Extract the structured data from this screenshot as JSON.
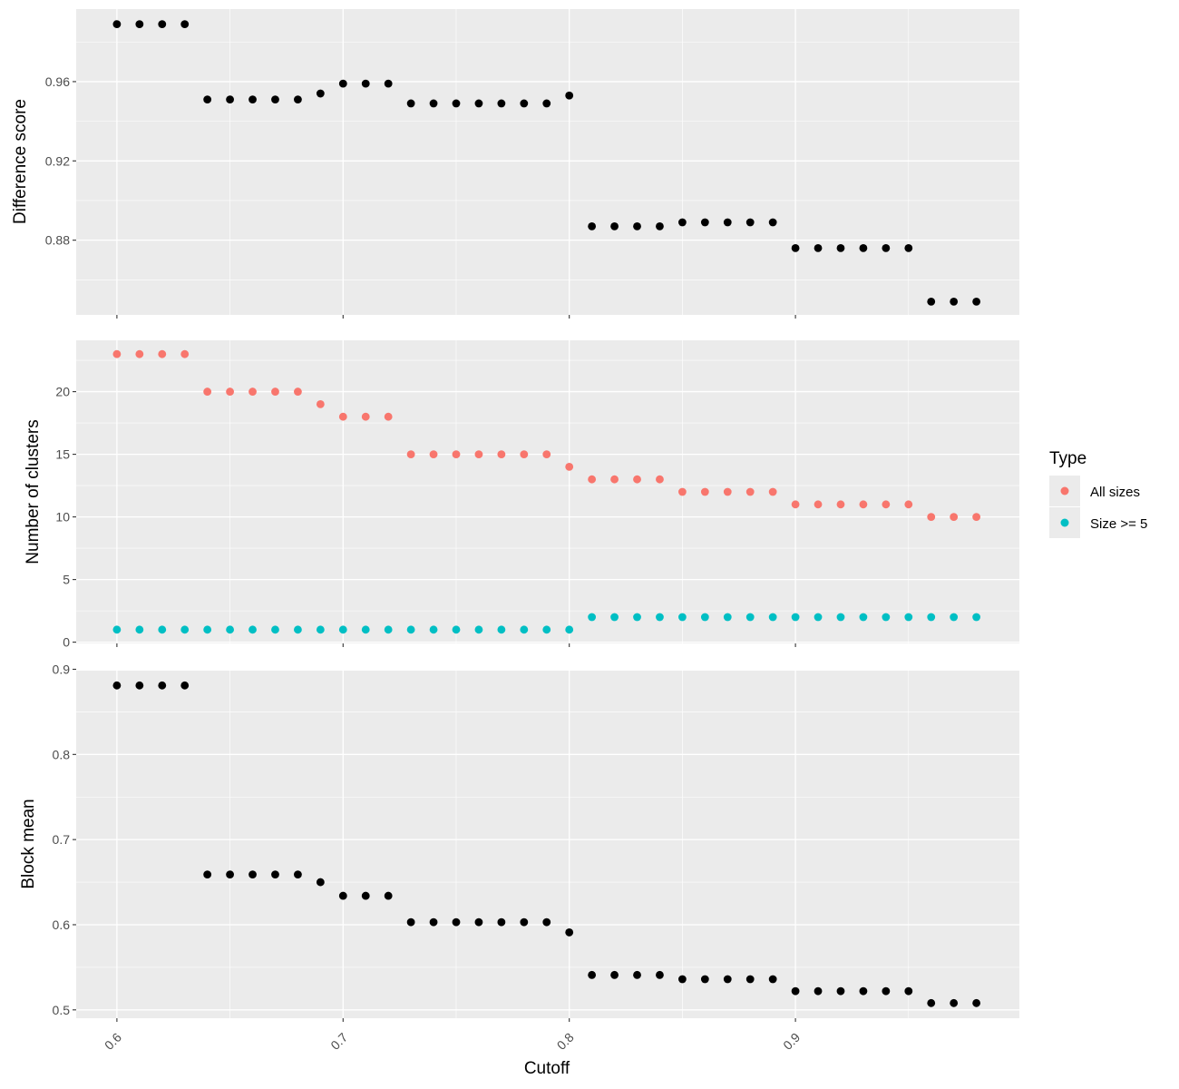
{
  "x_axis": {
    "label": "Cutoff",
    "ticks": [
      0.6,
      0.7,
      0.8,
      0.9
    ],
    "tick_labels": [
      "0.6",
      "0.7",
      "0.8",
      "0.9"
    ],
    "range": [
      0.582,
      0.999
    ]
  },
  "legend": {
    "title": "Type",
    "items": [
      {
        "label": "All sizes",
        "color": "#F8766D"
      },
      {
        "label": "Size >= 5",
        "color": "#00BFC4"
      }
    ]
  },
  "chart_data": [
    {
      "type": "scatter",
      "ylabel": "Difference score",
      "ylim": [
        0.8423,
        0.9966
      ],
      "yticks": [
        0.88,
        0.92,
        0.96
      ],
      "ytick_labels": [
        "0.88",
        "0.92",
        "0.96"
      ],
      "grid": true,
      "series": [
        {
          "color": "#000000",
          "x": [
            0.6,
            0.61,
            0.62,
            0.63,
            0.64,
            0.65,
            0.66,
            0.67,
            0.68,
            0.69,
            0.7,
            0.71,
            0.72,
            0.73,
            0.74,
            0.75,
            0.76,
            0.77,
            0.78,
            0.79,
            0.8,
            0.81,
            0.82,
            0.83,
            0.84,
            0.85,
            0.86,
            0.87,
            0.88,
            0.89,
            0.9,
            0.91,
            0.92,
            0.93,
            0.94,
            0.95,
            0.96,
            0.97,
            0.98
          ],
          "y": [
            0.989,
            0.989,
            0.989,
            0.989,
            0.951,
            0.951,
            0.951,
            0.951,
            0.951,
            0.954,
            0.959,
            0.959,
            0.959,
            0.949,
            0.949,
            0.949,
            0.949,
            0.949,
            0.949,
            0.949,
            0.953,
            0.887,
            0.887,
            0.887,
            0.887,
            0.889,
            0.889,
            0.889,
            0.889,
            0.889,
            0.876,
            0.876,
            0.876,
            0.876,
            0.876,
            0.876,
            0.849,
            0.849,
            0.849
          ]
        }
      ]
    },
    {
      "type": "scatter",
      "ylabel": "Number of clusters",
      "ylim": [
        -0.1,
        24.1
      ],
      "yticks": [
        0,
        5,
        10,
        15,
        20
      ],
      "ytick_labels": [
        "0",
        "5",
        "10",
        "15",
        "20"
      ],
      "grid": true,
      "legend": "right",
      "series": [
        {
          "name": "All sizes",
          "color": "#F8766D",
          "x": [
            0.6,
            0.61,
            0.62,
            0.63,
            0.64,
            0.65,
            0.66,
            0.67,
            0.68,
            0.69,
            0.7,
            0.71,
            0.72,
            0.73,
            0.74,
            0.75,
            0.76,
            0.77,
            0.78,
            0.79,
            0.8,
            0.81,
            0.82,
            0.83,
            0.84,
            0.85,
            0.86,
            0.87,
            0.88,
            0.89,
            0.9,
            0.91,
            0.92,
            0.93,
            0.94,
            0.95,
            0.96,
            0.97,
            0.98
          ],
          "y": [
            23,
            23,
            23,
            23,
            20,
            20,
            20,
            20,
            20,
            19,
            18,
            18,
            18,
            15,
            15,
            15,
            15,
            15,
            15,
            15,
            14,
            13,
            13,
            13,
            13,
            12,
            12,
            12,
            12,
            12,
            11,
            11,
            11,
            11,
            11,
            11,
            10,
            10,
            10
          ]
        },
        {
          "name": "Size >= 5",
          "color": "#00BFC4",
          "x": [
            0.6,
            0.61,
            0.62,
            0.63,
            0.64,
            0.65,
            0.66,
            0.67,
            0.68,
            0.69,
            0.7,
            0.71,
            0.72,
            0.73,
            0.74,
            0.75,
            0.76,
            0.77,
            0.78,
            0.79,
            0.8,
            0.81,
            0.82,
            0.83,
            0.84,
            0.85,
            0.86,
            0.87,
            0.88,
            0.89,
            0.9,
            0.91,
            0.92,
            0.93,
            0.94,
            0.95,
            0.96,
            0.97,
            0.98
          ],
          "y": [
            1,
            1,
            1,
            1,
            1,
            1,
            1,
            1,
            1,
            1,
            1,
            1,
            1,
            1,
            1,
            1,
            1,
            1,
            1,
            1,
            1,
            2,
            2,
            2,
            2,
            2,
            2,
            2,
            2,
            2,
            2,
            2,
            2,
            2,
            2,
            2,
            2,
            2,
            2
          ]
        }
      ]
    },
    {
      "type": "scatter",
      "ylabel": "Block mean",
      "ylim": [
        0.4902,
        0.8984
      ],
      "yticks": [
        0.5,
        0.6,
        0.7,
        0.8,
        0.9
      ],
      "ytick_labels": [
        "0.5",
        "0.6",
        "0.7",
        "0.8",
        "0.9"
      ],
      "grid": true,
      "series": [
        {
          "color": "#000000",
          "x": [
            0.6,
            0.61,
            0.62,
            0.63,
            0.64,
            0.65,
            0.66,
            0.67,
            0.68,
            0.69,
            0.7,
            0.71,
            0.72,
            0.73,
            0.74,
            0.75,
            0.76,
            0.77,
            0.78,
            0.79,
            0.8,
            0.81,
            0.82,
            0.83,
            0.84,
            0.85,
            0.86,
            0.87,
            0.88,
            0.89,
            0.9,
            0.91,
            0.92,
            0.93,
            0.94,
            0.95,
            0.96,
            0.97,
            0.98
          ],
          "y": [
            0.881,
            0.881,
            0.881,
            0.881,
            0.659,
            0.659,
            0.659,
            0.659,
            0.659,
            0.65,
            0.634,
            0.634,
            0.634,
            0.603,
            0.603,
            0.603,
            0.603,
            0.603,
            0.603,
            0.603,
            0.591,
            0.541,
            0.541,
            0.541,
            0.541,
            0.536,
            0.536,
            0.536,
            0.536,
            0.536,
            0.522,
            0.522,
            0.522,
            0.522,
            0.522,
            0.522,
            0.508,
            0.508,
            0.508
          ]
        }
      ]
    }
  ]
}
